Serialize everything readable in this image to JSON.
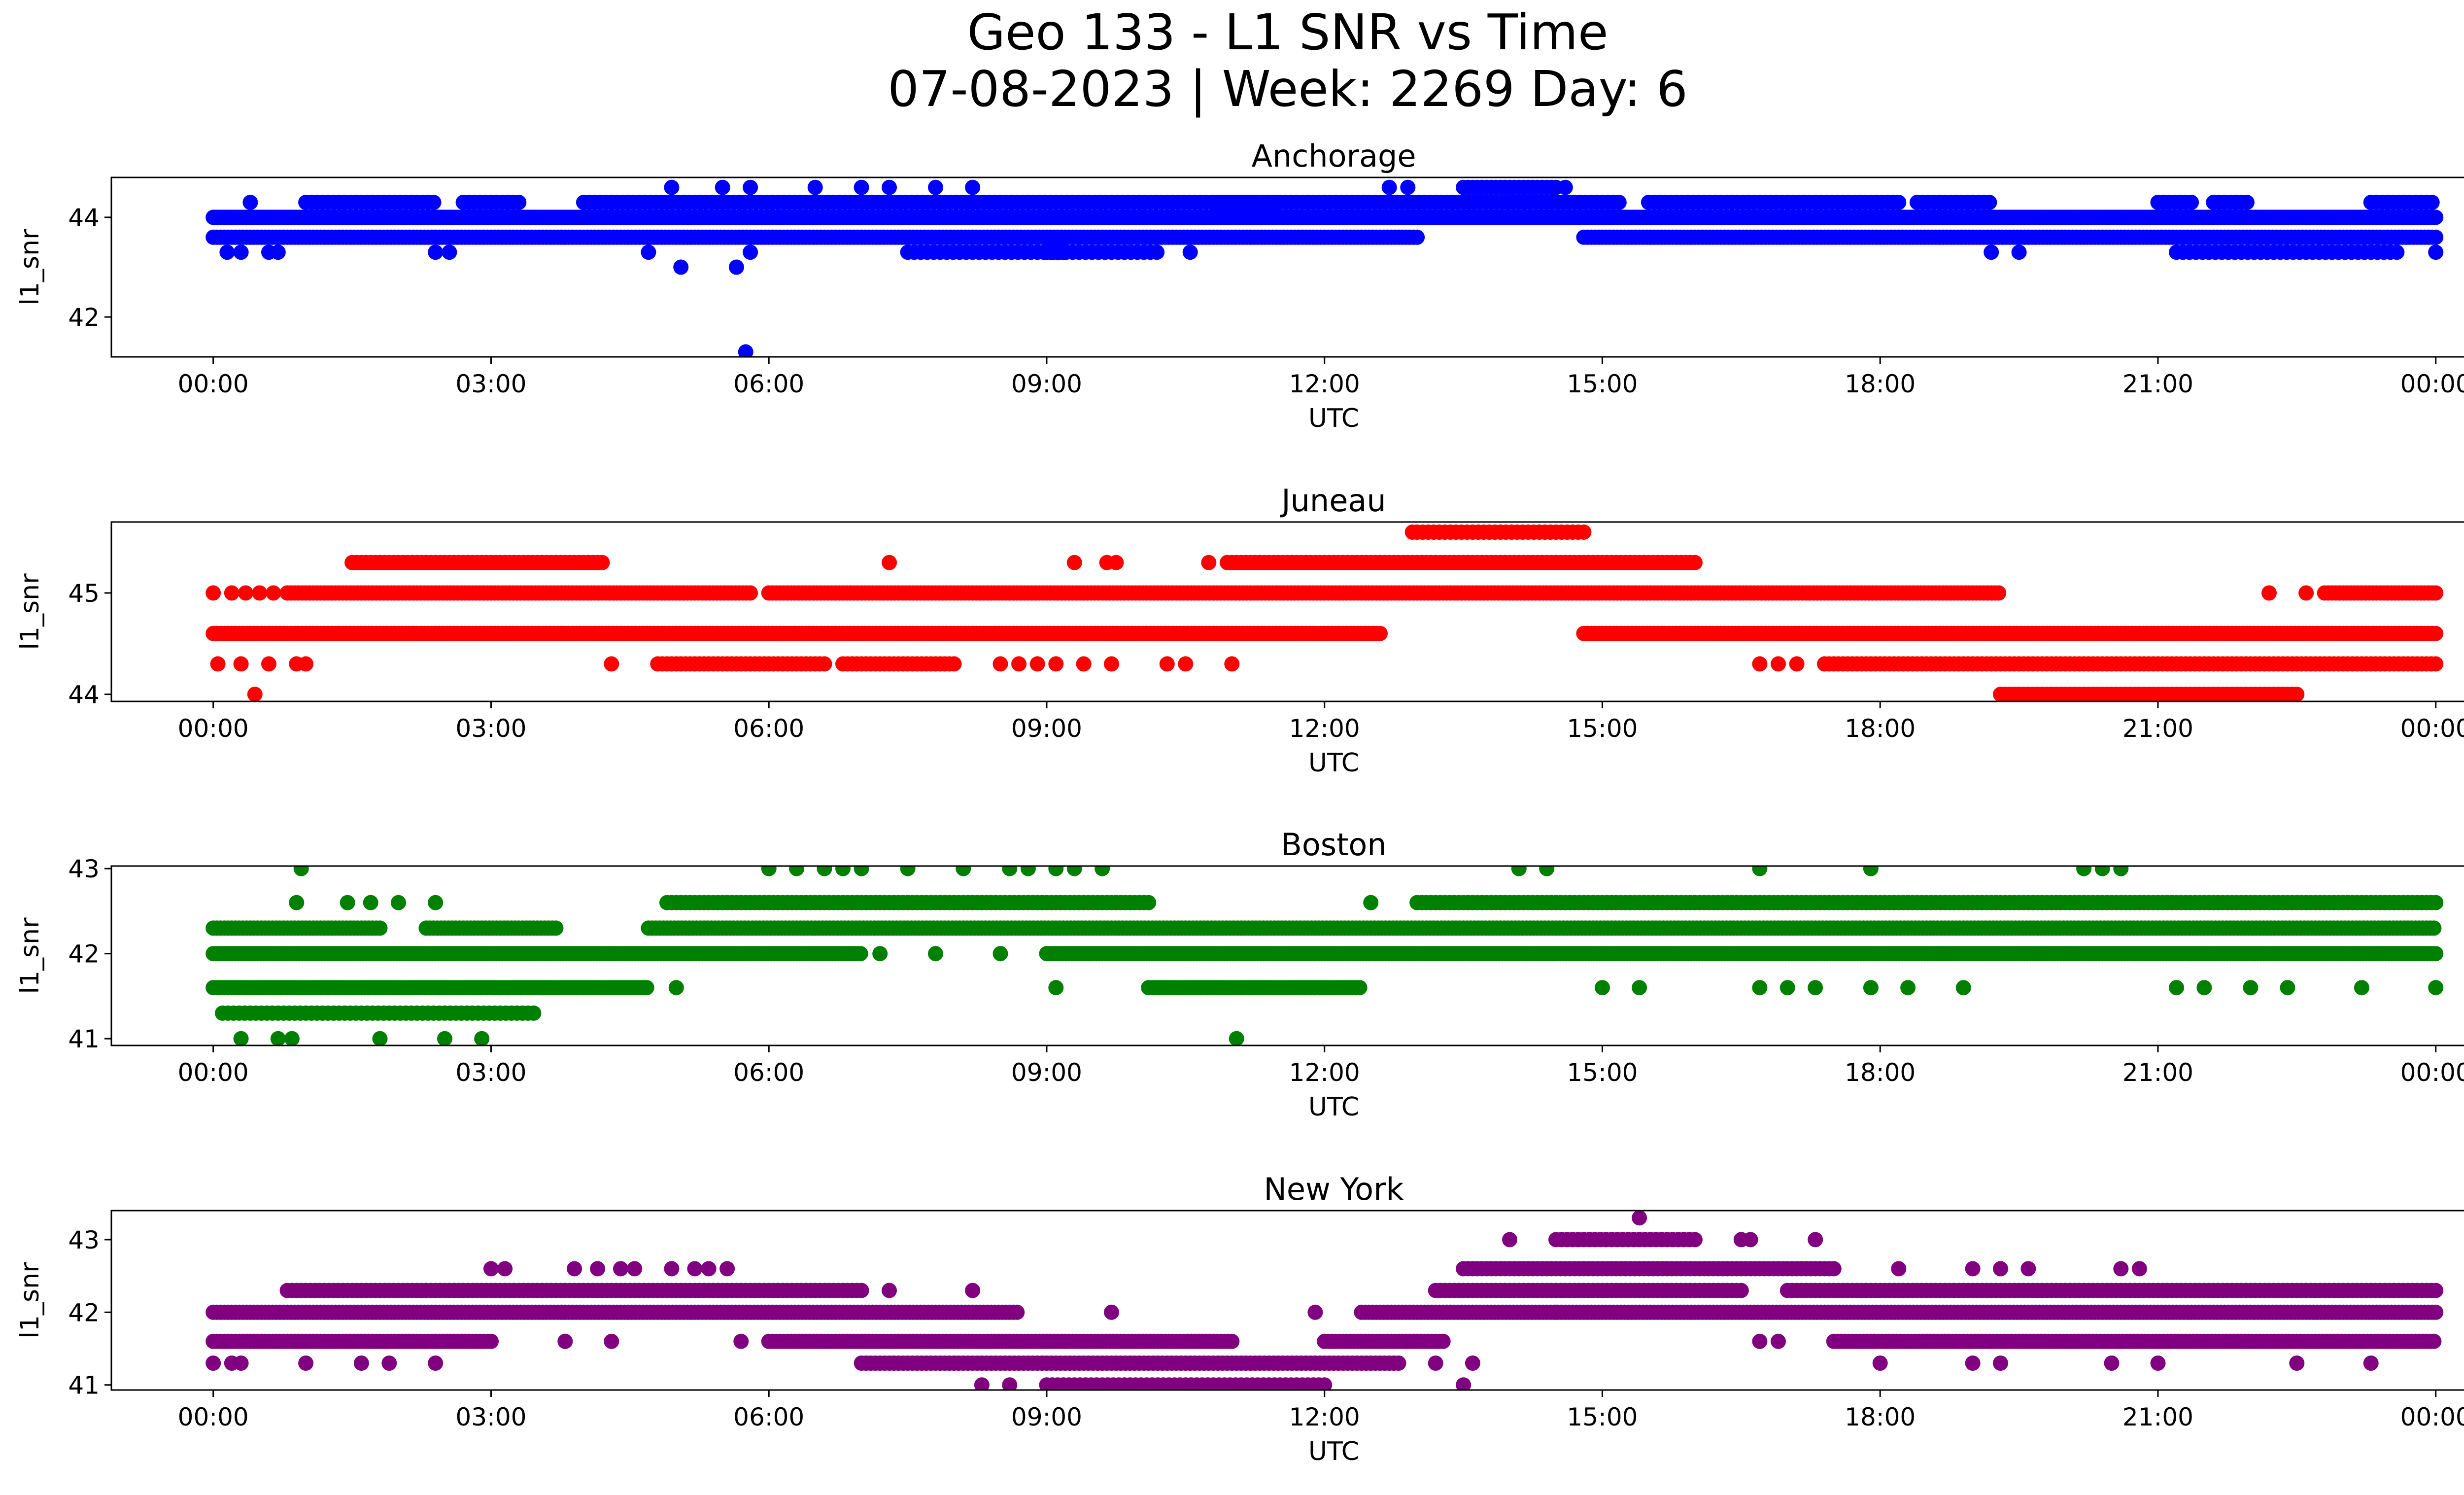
{
  "figure": {
    "title_line1": "Geo 133 - L1 SNR vs Time",
    "title_line2": "07-08-2023 | Week: 2269 Day: 6"
  },
  "chart_data": [
    {
      "type": "scatter",
      "title": "Anchorage",
      "xlabel": "UTC",
      "ylabel": "l1_snr",
      "color": "#0000ff",
      "xlim_hours": [
        -1.1,
        25.3
      ],
      "ylim": [
        41.2,
        44.8
      ],
      "yticks": [
        42,
        44
      ],
      "ytick_labels": [
        "42",
        "44"
      ],
      "xtick_hours": [
        0,
        3,
        6,
        9,
        12,
        15,
        18,
        21,
        24
      ],
      "xtick_labels": [
        "00:00",
        "03:00",
        "06:00",
        "09:00",
        "12:00",
        "15:00",
        "18:00",
        "21:00",
        "00:00"
      ],
      "bands": [
        {
          "value": 44.0,
          "ranges": [
            [
              0,
              24
            ]
          ],
          "step": 0.03
        },
        {
          "value": 43.6,
          "ranges": [
            [
              0,
              13.0
            ],
            [
              14.8,
              24
            ]
          ],
          "step": 0.04
        },
        {
          "value": 44.3,
          "ranges": [
            [
              1.0,
              2.4
            ],
            [
              2.7,
              3.3
            ],
            [
              4.0,
              11.5
            ],
            [
              10.8,
              15.2
            ],
            [
              15.5,
              18.2
            ],
            [
              18.4,
              19.2
            ],
            [
              21.0,
              21.4
            ],
            [
              21.6,
              22.0
            ],
            [
              23.3,
              24
            ]
          ],
          "step": 0.06
        },
        {
          "value": 43.3,
          "ranges": [
            [
              7.5,
              9.2
            ],
            [
              9.0,
              10.2
            ],
            [
              21.2,
              23.6
            ]
          ],
          "step": 0.07
        },
        {
          "value": 44.6,
          "ranges": [
            [
              13.5,
              14.5
            ]
          ],
          "step": 0.05
        }
      ],
      "outliers": [
        {
          "x": 5.75,
          "y": 41.3
        },
        {
          "x": 5.05,
          "y": 43.0
        },
        {
          "x": 5.65,
          "y": 43.0
        },
        {
          "x": 0.15,
          "y": 43.3
        },
        {
          "x": 0.3,
          "y": 43.3
        },
        {
          "x": 0.6,
          "y": 43.3
        },
        {
          "x": 0.7,
          "y": 43.3
        },
        {
          "x": 2.4,
          "y": 43.3
        },
        {
          "x": 2.55,
          "y": 43.3
        },
        {
          "x": 4.7,
          "y": 43.3
        },
        {
          "x": 5.8,
          "y": 43.3
        },
        {
          "x": 10.55,
          "y": 43.3
        },
        {
          "x": 19.2,
          "y": 43.3
        },
        {
          "x": 19.5,
          "y": 43.3
        },
        {
          "x": 24.0,
          "y": 43.3
        },
        {
          "x": 0.4,
          "y": 44.3
        },
        {
          "x": 4.95,
          "y": 44.6
        },
        {
          "x": 5.5,
          "y": 44.6
        },
        {
          "x": 5.8,
          "y": 44.6
        },
        {
          "x": 6.5,
          "y": 44.6
        },
        {
          "x": 7.0,
          "y": 44.6
        },
        {
          "x": 7.3,
          "y": 44.6
        },
        {
          "x": 7.8,
          "y": 44.6
        },
        {
          "x": 8.2,
          "y": 44.6
        },
        {
          "x": 12.7,
          "y": 44.6
        },
        {
          "x": 12.9,
          "y": 44.6
        },
        {
          "x": 14.6,
          "y": 44.6
        },
        {
          "x": 13.7,
          "y": 44.0
        },
        {
          "x": 14.2,
          "y": 44.0
        }
      ]
    },
    {
      "type": "scatter",
      "title": "Juneau",
      "xlabel": "UTC",
      "ylabel": "l1_snr",
      "color": "#ff0000",
      "xlim_hours": [
        -1.1,
        25.3
      ],
      "ylim": [
        43.93,
        45.7
      ],
      "yticks": [
        44,
        45
      ],
      "ytick_labels": [
        "44",
        "45"
      ],
      "xtick_hours": [
        0,
        3,
        6,
        9,
        12,
        15,
        18,
        21,
        24
      ],
      "xtick_labels": [
        "00:00",
        "03:00",
        "06:00",
        "09:00",
        "12:00",
        "15:00",
        "18:00",
        "21:00",
        "00:00"
      ],
      "bands": [
        {
          "value": 44.6,
          "ranges": [
            [
              0,
              12.6
            ],
            [
              14.8,
              24
            ]
          ],
          "step": 0.04
        },
        {
          "value": 45.0,
          "ranges": [
            [
              0.8,
              5.8
            ],
            [
              6.0,
              19.3
            ],
            [
              22.8,
              24
            ]
          ],
          "step": 0.04
        },
        {
          "value": 44.3,
          "ranges": [
            [
              4.8,
              6.6
            ],
            [
              6.8,
              8.0
            ],
            [
              17.4,
              24
            ]
          ],
          "step": 0.05
        },
        {
          "value": 45.3,
          "ranges": [
            [
              1.5,
              4.2
            ],
            [
              11.0,
              16.0
            ]
          ],
          "step": 0.05
        },
        {
          "value": 44.0,
          "ranges": [
            [
              19.3,
              22.5
            ]
          ],
          "step": 0.05
        },
        {
          "value": 45.6,
          "ranges": [
            [
              13.0,
              14.8
            ]
          ],
          "step": 0.06
        }
      ],
      "outliers": [
        {
          "x": 0.0,
          "y": 45.0
        },
        {
          "x": 0.2,
          "y": 45.0
        },
        {
          "x": 0.35,
          "y": 45.0
        },
        {
          "x": 0.5,
          "y": 45.0
        },
        {
          "x": 0.65,
          "y": 45.0
        },
        {
          "x": 0.05,
          "y": 44.3
        },
        {
          "x": 0.3,
          "y": 44.3
        },
        {
          "x": 0.6,
          "y": 44.3
        },
        {
          "x": 0.9,
          "y": 44.3
        },
        {
          "x": 1.0,
          "y": 44.3
        },
        {
          "x": 0.45,
          "y": 44.0
        },
        {
          "x": 4.3,
          "y": 44.3
        },
        {
          "x": 7.3,
          "y": 45.3
        },
        {
          "x": 9.3,
          "y": 45.3
        },
        {
          "x": 9.65,
          "y": 45.3
        },
        {
          "x": 9.75,
          "y": 45.3
        },
        {
          "x": 10.75,
          "y": 45.3
        },
        {
          "x": 10.95,
          "y": 45.3
        },
        {
          "x": 8.5,
          "y": 44.3
        },
        {
          "x": 8.7,
          "y": 44.3
        },
        {
          "x": 8.9,
          "y": 44.3
        },
        {
          "x": 9.1,
          "y": 44.3
        },
        {
          "x": 9.4,
          "y": 44.3
        },
        {
          "x": 9.7,
          "y": 44.3
        },
        {
          "x": 10.3,
          "y": 44.3
        },
        {
          "x": 10.5,
          "y": 44.3
        },
        {
          "x": 11.0,
          "y": 44.3
        },
        {
          "x": 16.7,
          "y": 44.3
        },
        {
          "x": 16.9,
          "y": 44.3
        },
        {
          "x": 17.1,
          "y": 44.3
        },
        {
          "x": 22.2,
          "y": 45.0
        },
        {
          "x": 22.6,
          "y": 45.0
        },
        {
          "x": 12.95,
          "y": 45.6
        }
      ]
    },
    {
      "type": "scatter",
      "title": "Boston",
      "xlabel": "UTC",
      "ylabel": "l1_snr",
      "color": "#008000",
      "xlim_hours": [
        -1.1,
        25.3
      ],
      "ylim": [
        40.92,
        43.03
      ],
      "yticks": [
        41,
        42,
        43
      ],
      "ytick_labels": [
        "41",
        "42",
        "43"
      ],
      "xtick_hours": [
        0,
        3,
        6,
        9,
        12,
        15,
        18,
        21,
        24
      ],
      "xtick_labels": [
        "00:00",
        "03:00",
        "06:00",
        "09:00",
        "12:00",
        "15:00",
        "18:00",
        "21:00",
        "00:00"
      ],
      "bands": [
        {
          "value": 42.0,
          "ranges": [
            [
              0,
              7.0
            ],
            [
              9.0,
              24
            ]
          ],
          "step": 0.03
        },
        {
          "value": 41.6,
          "ranges": [
            [
              0,
              4.7
            ],
            [
              10.1,
              12.4
            ]
          ],
          "step": 0.04
        },
        {
          "value": 42.3,
          "ranges": [
            [
              0,
              1.8
            ],
            [
              2.3,
              3.7
            ],
            [
              4.7,
              24
            ]
          ],
          "step": 0.04
        },
        {
          "value": 42.6,
          "ranges": [
            [
              4.9,
              10.1
            ],
            [
              13.0,
              24
            ]
          ],
          "step": 0.05
        },
        {
          "value": 41.3,
          "ranges": [
            [
              0.1,
              3.5
            ]
          ],
          "step": 0.06
        }
      ],
      "outliers": [
        {
          "x": 0.3,
          "y": 41.0
        },
        {
          "x": 0.7,
          "y": 41.0
        },
        {
          "x": 0.85,
          "y": 41.0
        },
        {
          "x": 1.8,
          "y": 41.0
        },
        {
          "x": 2.5,
          "y": 41.0
        },
        {
          "x": 2.9,
          "y": 41.0
        },
        {
          "x": 11.05,
          "y": 41.0
        },
        {
          "x": 0.95,
          "y": 43.0
        },
        {
          "x": 6.0,
          "y": 43.0
        },
        {
          "x": 6.3,
          "y": 43.0
        },
        {
          "x": 6.6,
          "y": 43.0
        },
        {
          "x": 6.8,
          "y": 43.0
        },
        {
          "x": 7.0,
          "y": 43.0
        },
        {
          "x": 7.5,
          "y": 43.0
        },
        {
          "x": 8.1,
          "y": 43.0
        },
        {
          "x": 8.6,
          "y": 43.0
        },
        {
          "x": 8.8,
          "y": 43.0
        },
        {
          "x": 9.1,
          "y": 43.0
        },
        {
          "x": 9.3,
          "y": 43.0
        },
        {
          "x": 9.6,
          "y": 43.0
        },
        {
          "x": 14.1,
          "y": 43.0
        },
        {
          "x": 14.4,
          "y": 43.0
        },
        {
          "x": 16.7,
          "y": 43.0
        },
        {
          "x": 17.9,
          "y": 43.0
        },
        {
          "x": 20.2,
          "y": 43.0
        },
        {
          "x": 20.4,
          "y": 43.0
        },
        {
          "x": 20.6,
          "y": 43.0
        },
        {
          "x": 0.9,
          "y": 42.6
        },
        {
          "x": 1.45,
          "y": 42.6
        },
        {
          "x": 1.7,
          "y": 42.6
        },
        {
          "x": 2.0,
          "y": 42.6
        },
        {
          "x": 2.4,
          "y": 42.6
        },
        {
          "x": 12.5,
          "y": 42.6
        },
        {
          "x": 7.2,
          "y": 42.0
        },
        {
          "x": 7.8,
          "y": 42.0
        },
        {
          "x": 8.5,
          "y": 42.0
        },
        {
          "x": 5.0,
          "y": 41.6
        },
        {
          "x": 9.1,
          "y": 41.6
        },
        {
          "x": 15.0,
          "y": 41.6
        },
        {
          "x": 15.4,
          "y": 41.6
        },
        {
          "x": 16.7,
          "y": 41.6
        },
        {
          "x": 17.0,
          "y": 41.6
        },
        {
          "x": 17.3,
          "y": 41.6
        },
        {
          "x": 17.9,
          "y": 41.6
        },
        {
          "x": 18.3,
          "y": 41.6
        },
        {
          "x": 18.9,
          "y": 41.6
        },
        {
          "x": 21.2,
          "y": 41.6
        },
        {
          "x": 21.5,
          "y": 41.6
        },
        {
          "x": 22.0,
          "y": 41.6
        },
        {
          "x": 22.4,
          "y": 41.6
        },
        {
          "x": 23.2,
          "y": 41.6
        },
        {
          "x": 24.0,
          "y": 41.6
        }
      ]
    },
    {
      "type": "scatter",
      "title": "New York",
      "xlabel": "UTC",
      "ylabel": "l1_snr",
      "color": "#800080",
      "xlim_hours": [
        -1.1,
        25.3
      ],
      "ylim": [
        40.93,
        43.4
      ],
      "yticks": [
        41,
        42,
        43
      ],
      "ytick_labels": [
        "41",
        "42",
        "43"
      ],
      "xtick_hours": [
        0,
        3,
        6,
        9,
        12,
        15,
        18,
        21,
        24
      ],
      "xtick_labels": [
        "00:00",
        "03:00",
        "06:00",
        "09:00",
        "12:00",
        "15:00",
        "18:00",
        "21:00",
        "00:00"
      ],
      "bands": [
        {
          "value": 42.0,
          "ranges": [
            [
              0,
              8.7
            ],
            [
              12.4,
              24
            ]
          ],
          "step": 0.04
        },
        {
          "value": 41.6,
          "ranges": [
            [
              0,
              3.0
            ],
            [
              6.0,
              11.0
            ],
            [
              12.0,
              13.3
            ],
            [
              17.5,
              24
            ]
          ],
          "step": 0.04
        },
        {
          "value": 42.3,
          "ranges": [
            [
              0.8,
              7.0
            ],
            [
              13.2,
              16.5
            ],
            [
              17.0,
              24
            ]
          ],
          "step": 0.05
        },
        {
          "value": 41.3,
          "ranges": [
            [
              7.0,
              12.8
            ]
          ],
          "step": 0.05
        },
        {
          "value": 41.0,
          "ranges": [
            [
              9.0,
              12.0
            ]
          ],
          "step": 0.06
        },
        {
          "value": 42.6,
          "ranges": [
            [
              13.5,
              17.5
            ]
          ],
          "step": 0.05
        },
        {
          "value": 43.0,
          "ranges": [
            [
              14.5,
              16.0
            ]
          ],
          "step": 0.06
        }
      ],
      "outliers": [
        {
          "x": 0.0,
          "y": 41.3
        },
        {
          "x": 0.2,
          "y": 41.3
        },
        {
          "x": 0.3,
          "y": 41.3
        },
        {
          "x": 1.0,
          "y": 41.3
        },
        {
          "x": 1.6,
          "y": 41.3
        },
        {
          "x": 1.9,
          "y": 41.3
        },
        {
          "x": 2.4,
          "y": 41.3
        },
        {
          "x": 13.2,
          "y": 41.3
        },
        {
          "x": 13.6,
          "y": 41.3
        },
        {
          "x": 18.0,
          "y": 41.3
        },
        {
          "x": 19.0,
          "y": 41.3
        },
        {
          "x": 19.3,
          "y": 41.3
        },
        {
          "x": 20.5,
          "y": 41.3
        },
        {
          "x": 21.0,
          "y": 41.3
        },
        {
          "x": 22.5,
          "y": 41.3
        },
        {
          "x": 23.3,
          "y": 41.3
        },
        {
          "x": 3.0,
          "y": 42.6
        },
        {
          "x": 3.15,
          "y": 42.6
        },
        {
          "x": 3.9,
          "y": 42.6
        },
        {
          "x": 4.15,
          "y": 42.6
        },
        {
          "x": 4.4,
          "y": 42.6
        },
        {
          "x": 4.55,
          "y": 42.6
        },
        {
          "x": 4.95,
          "y": 42.6
        },
        {
          "x": 5.2,
          "y": 42.6
        },
        {
          "x": 5.35,
          "y": 42.6
        },
        {
          "x": 5.55,
          "y": 42.6
        },
        {
          "x": 18.2,
          "y": 42.6
        },
        {
          "x": 19.0,
          "y": 42.6
        },
        {
          "x": 19.3,
          "y": 42.6
        },
        {
          "x": 19.6,
          "y": 42.6
        },
        {
          "x": 20.6,
          "y": 42.6
        },
        {
          "x": 20.8,
          "y": 42.6
        },
        {
          "x": 3.8,
          "y": 41.6
        },
        {
          "x": 4.3,
          "y": 41.6
        },
        {
          "x": 5.7,
          "y": 41.6
        },
        {
          "x": 8.2,
          "y": 42.3
        },
        {
          "x": 7.3,
          "y": 42.3
        },
        {
          "x": 9.7,
          "y": 42.0
        },
        {
          "x": 11.9,
          "y": 42.0
        },
        {
          "x": 8.3,
          "y": 41.0
        },
        {
          "x": 8.6,
          "y": 41.0
        },
        {
          "x": 13.5,
          "y": 41.0
        },
        {
          "x": 14.0,
          "y": 43.0
        },
        {
          "x": 14.5,
          "y": 42.0
        },
        {
          "x": 16.5,
          "y": 43.0
        },
        {
          "x": 16.6,
          "y": 43.0
        },
        {
          "x": 17.3,
          "y": 43.0
        },
        {
          "x": 16.7,
          "y": 41.6
        },
        {
          "x": 16.9,
          "y": 41.6
        },
        {
          "x": 15.4,
          "y": 43.3
        }
      ]
    }
  ]
}
